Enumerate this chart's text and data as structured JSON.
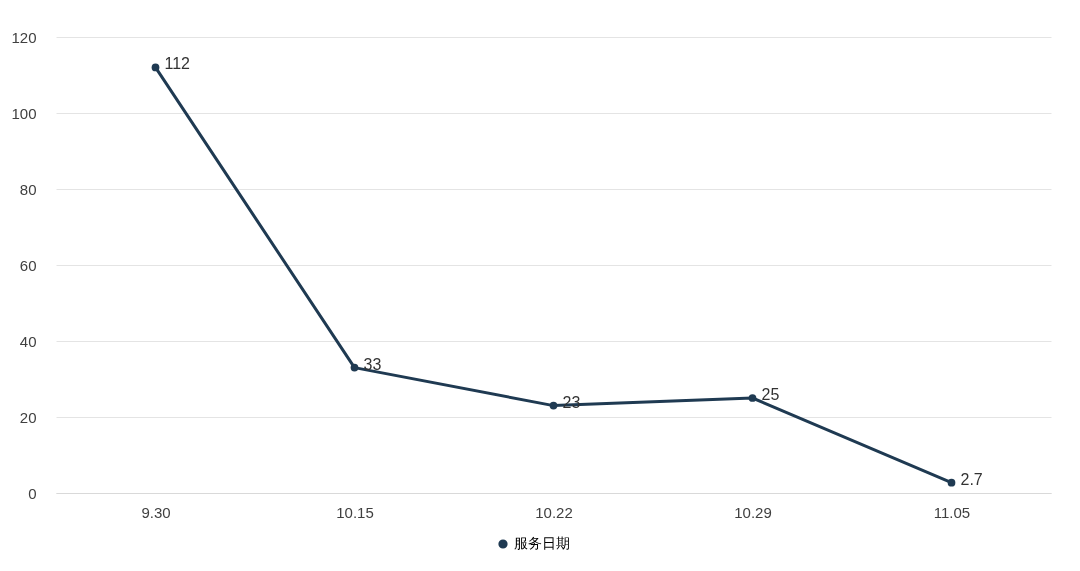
{
  "chart_data": {
    "type": "line",
    "categories": [
      "9.30",
      "10.15",
      "10.22",
      "10.29",
      "11.05"
    ],
    "series": [
      {
        "name": "服务日期",
        "color": "#1f3a52",
        "values": [
          112,
          33,
          23,
          25,
          2.7
        ]
      }
    ],
    "ylim": [
      0,
      120
    ],
    "yticks": [
      0,
      20,
      40,
      60,
      80,
      100,
      120
    ],
    "grid": "y",
    "legend": "bottom",
    "marker": "circle",
    "line_style": "solid",
    "data_labels": true
  }
}
